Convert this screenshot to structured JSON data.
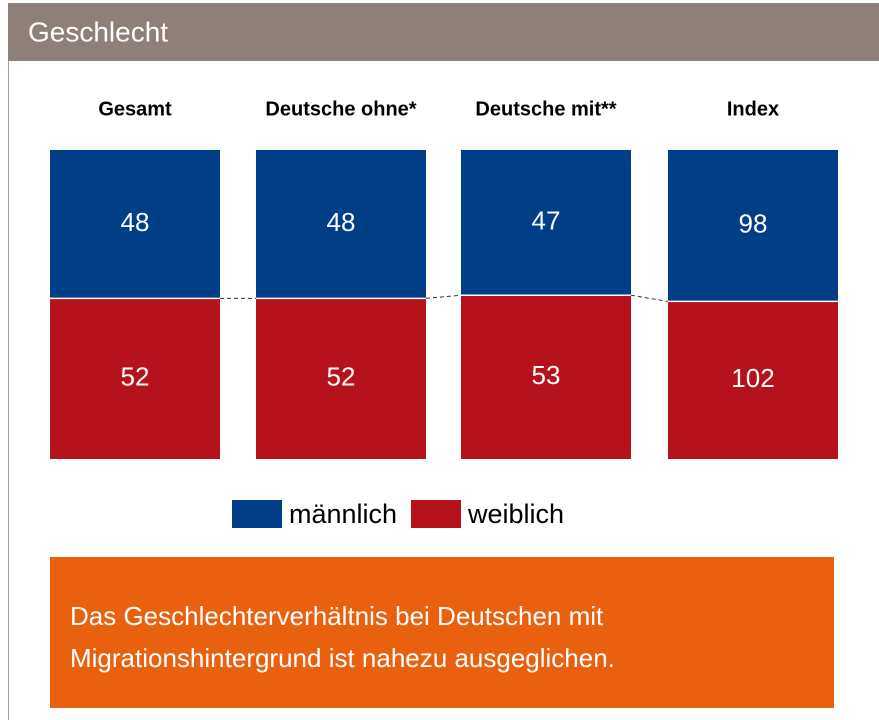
{
  "chart_data": {
    "type": "stacked_bar",
    "title": "Geschlecht",
    "categories": [
      "Gesamt",
      "Deutsche ohne*",
      "Deutsche mit**",
      "Index"
    ],
    "series": [
      {
        "name": "männlich",
        "color": "#003f87",
        "values": [
          48,
          48,
          47,
          98
        ]
      },
      {
        "name": "weiblich",
        "color": "#b5121b",
        "values": [
          52,
          52,
          53,
          102
        ]
      }
    ],
    "annotation": "Das Geschlechterverhältnis bei Deutschen mit Migrationshintergrund ist nahezu ausgeglichen."
  }
}
